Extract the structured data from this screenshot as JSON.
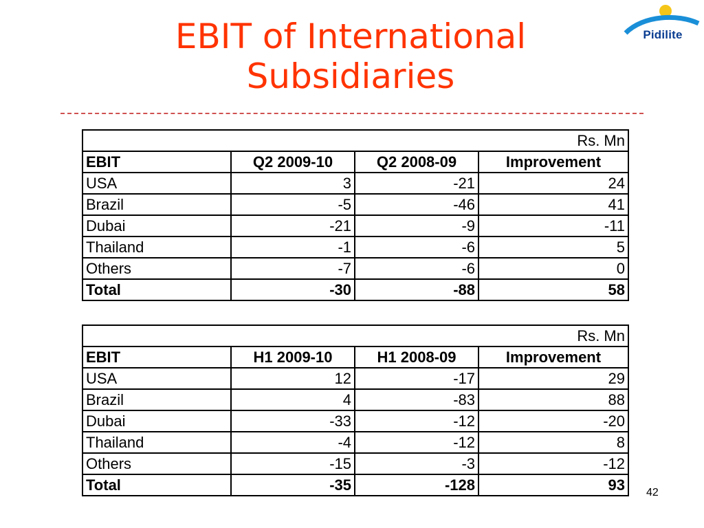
{
  "title": {
    "line1": "EBIT of International",
    "line2": "Subsidiaries"
  },
  "logo": {
    "text": "Pidilite",
    "colors": {
      "sun": "#f5c518",
      "arc": "#1a8fd8",
      "text": "#0a3d91"
    }
  },
  "colors": {
    "title": "#ff3300",
    "divider": "#d05050"
  },
  "tables": [
    {
      "unit": "Rs. Mn",
      "headers": [
        "EBIT",
        "Q2 2009-10",
        "Q2 2008-09",
        "Improvement"
      ],
      "rows": [
        [
          "USA",
          "3",
          "-21",
          "24"
        ],
        [
          "Brazil",
          "-5",
          "-46",
          "41"
        ],
        [
          "Dubai",
          "-21",
          "-9",
          "-11"
        ],
        [
          "Thailand",
          "-1",
          "-6",
          "5"
        ],
        [
          "Others",
          "-7",
          "-6",
          "0"
        ]
      ],
      "total": [
        "Total",
        "-30",
        "-88",
        "58"
      ]
    },
    {
      "unit": "Rs. Mn",
      "headers": [
        "EBIT",
        "H1 2009-10",
        "H1 2008-09",
        "Improvement"
      ],
      "rows": [
        [
          "USA",
          "12",
          "-17",
          "29"
        ],
        [
          "Brazil",
          "4",
          "-83",
          "88"
        ],
        [
          "Dubai",
          "-33",
          "-12",
          "-20"
        ],
        [
          "Thailand",
          "-4",
          "-12",
          "8"
        ],
        [
          "Others",
          "-15",
          "-3",
          "-12"
        ]
      ],
      "total": [
        "Total",
        "-35",
        "-128",
        "93"
      ]
    }
  ],
  "page_number": "42"
}
